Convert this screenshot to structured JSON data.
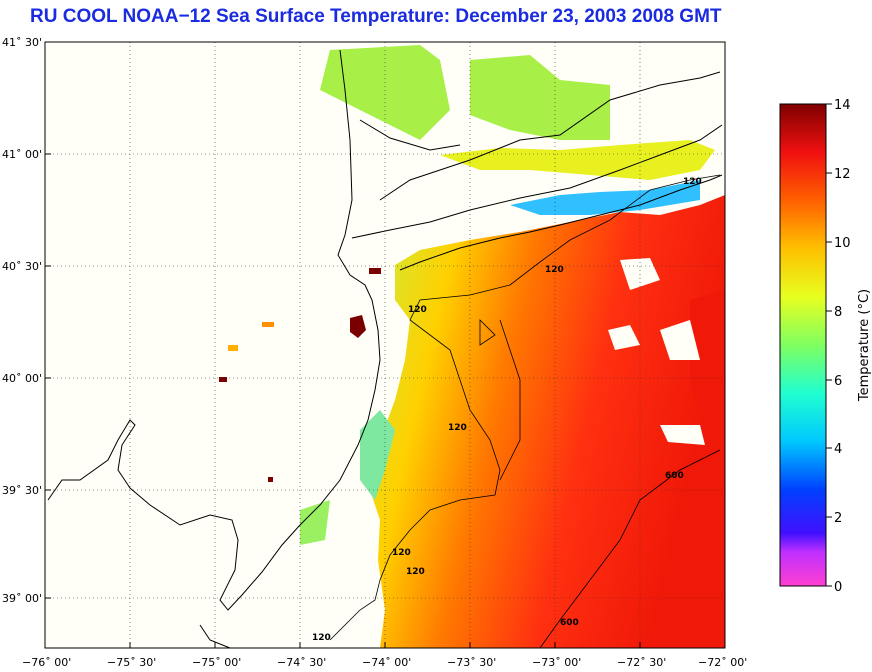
{
  "title": "RU COOL  NOAA−12  Sea Surface Temperature:  December 23, 2003 2008 GMT",
  "lat_labels": [
    "41˚ 30'",
    "41˚ 00'",
    "40˚ 30'",
    "40˚ 00'",
    "39˚ 30'",
    "39˚ 00'"
  ],
  "lon_labels": [
    "−76˚ 00'",
    "−75˚ 30'",
    "−75˚ 00'",
    "−74˚ 30'",
    "−74˚ 00'",
    "−73˚ 30'",
    "−73˚ 00'",
    "−72˚ 30'",
    "−72˚ 00'"
  ],
  "colorbar": {
    "label": "Temperature (°C)",
    "ticks": [
      "14",
      "12",
      "10",
      "8",
      "6",
      "4",
      "2",
      "0"
    ],
    "min": 0,
    "max": 14
  },
  "contour_labels": [
    "120",
    "120",
    "120",
    "120",
    "120",
    "120",
    "120",
    "600",
    "600"
  ],
  "colors": {
    "title": "#1a2be0",
    "land": "#fffff5",
    "cold": "#ff33cc",
    "warm": "#7a0000"
  }
}
